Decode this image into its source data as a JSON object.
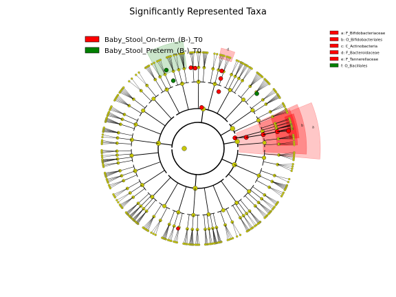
{
  "figure": {
    "title": "Significantly Represented Taxa"
  },
  "legend": {
    "items": [
      {
        "label": "Baby_Stool_On-term_(B-)_T0",
        "color": "#ff0000"
      },
      {
        "label": "Baby_Stool_Preterm_(B-)_T0",
        "color": "#008000"
      }
    ]
  },
  "taxa_key": {
    "items": [
      {
        "label": "a: F_Bifidobacteriaceae",
        "color": "#ff0000"
      },
      {
        "label": "b: O_Bifidobacteriales",
        "color": "#ff0000"
      },
      {
        "label": "c: C_Actinobacteria",
        "color": "#ff0000"
      },
      {
        "label": "d: F_Bacteroidaceae",
        "color": "#ff0000"
      },
      {
        "label": "e: F_Tannerellaceae",
        "color": "#ff0000"
      },
      {
        "label": "f: O_Bacillales",
        "color": "#008000"
      }
    ]
  },
  "highlight_letters": [
    "a",
    "b",
    "c",
    "d"
  ],
  "colors": {
    "node_default": "#c8c800",
    "node_enriched_term": "#ff0000",
    "node_enriched_preterm": "#008000",
    "shade_term": "#ff0000",
    "shade_preterm": "#008000"
  }
}
